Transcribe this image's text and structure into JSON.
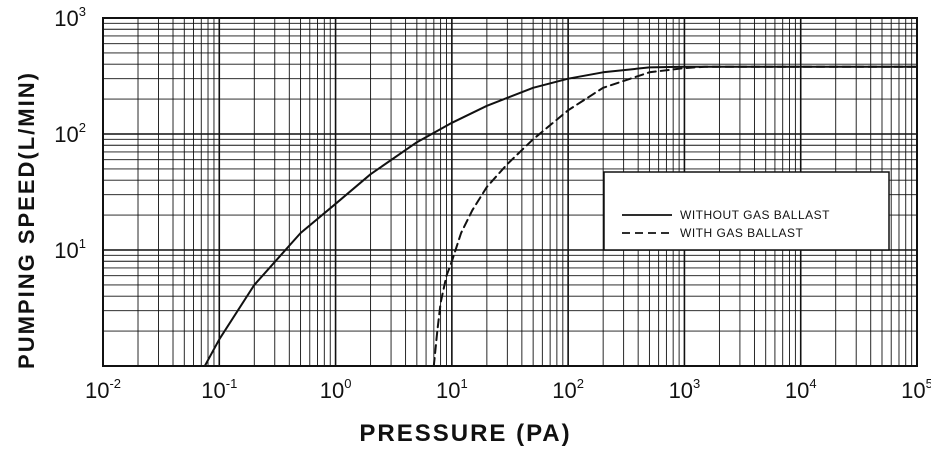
{
  "chart_data": {
    "type": "line",
    "title": "",
    "xlabel": "PRESSURE (PA)",
    "ylabel": "PUMPING SPEED(L/MIN)",
    "xscale": "log",
    "yscale": "log",
    "xlim": [
      0.01,
      100000
    ],
    "ylim": [
      1,
      1000
    ],
    "x_ticks": [
      {
        "base": "10",
        "exp": "-2"
      },
      {
        "base": "10",
        "exp": "-1"
      },
      {
        "base": "10",
        "exp": "0"
      },
      {
        "base": "10",
        "exp": "1"
      },
      {
        "base": "10",
        "exp": "2"
      },
      {
        "base": "10",
        "exp": "3"
      },
      {
        "base": "10",
        "exp": "4"
      },
      {
        "base": "10",
        "exp": "5"
      }
    ],
    "y_ticks": [
      {
        "base": "10",
        "exp": "1"
      },
      {
        "base": "10",
        "exp": "2"
      },
      {
        "base": "10",
        "exp": "3"
      }
    ],
    "grid": true,
    "legend_position": "right",
    "series": [
      {
        "name": "WITHOUT GAS BALLAST",
        "style": "solid",
        "color": "#111111",
        "x": [
          0.075,
          0.1,
          0.2,
          0.5,
          1,
          2,
          5,
          10,
          20,
          50,
          100,
          200,
          500,
          1000,
          100000
        ],
        "y": [
          1,
          1.7,
          5,
          14,
          25,
          45,
          85,
          125,
          175,
          250,
          300,
          340,
          375,
          380,
          380
        ]
      },
      {
        "name": "WITH GAS BALLAST",
        "style": "dashed",
        "color": "#111111",
        "x": [
          7,
          7.5,
          8,
          9,
          10,
          12,
          15,
          20,
          30,
          50,
          100,
          200,
          500,
          1000,
          1500,
          100000
        ],
        "y": [
          1,
          2,
          3.5,
          6,
          8,
          14,
          22,
          35,
          55,
          90,
          160,
          250,
          340,
          370,
          380,
          380
        ]
      }
    ]
  }
}
